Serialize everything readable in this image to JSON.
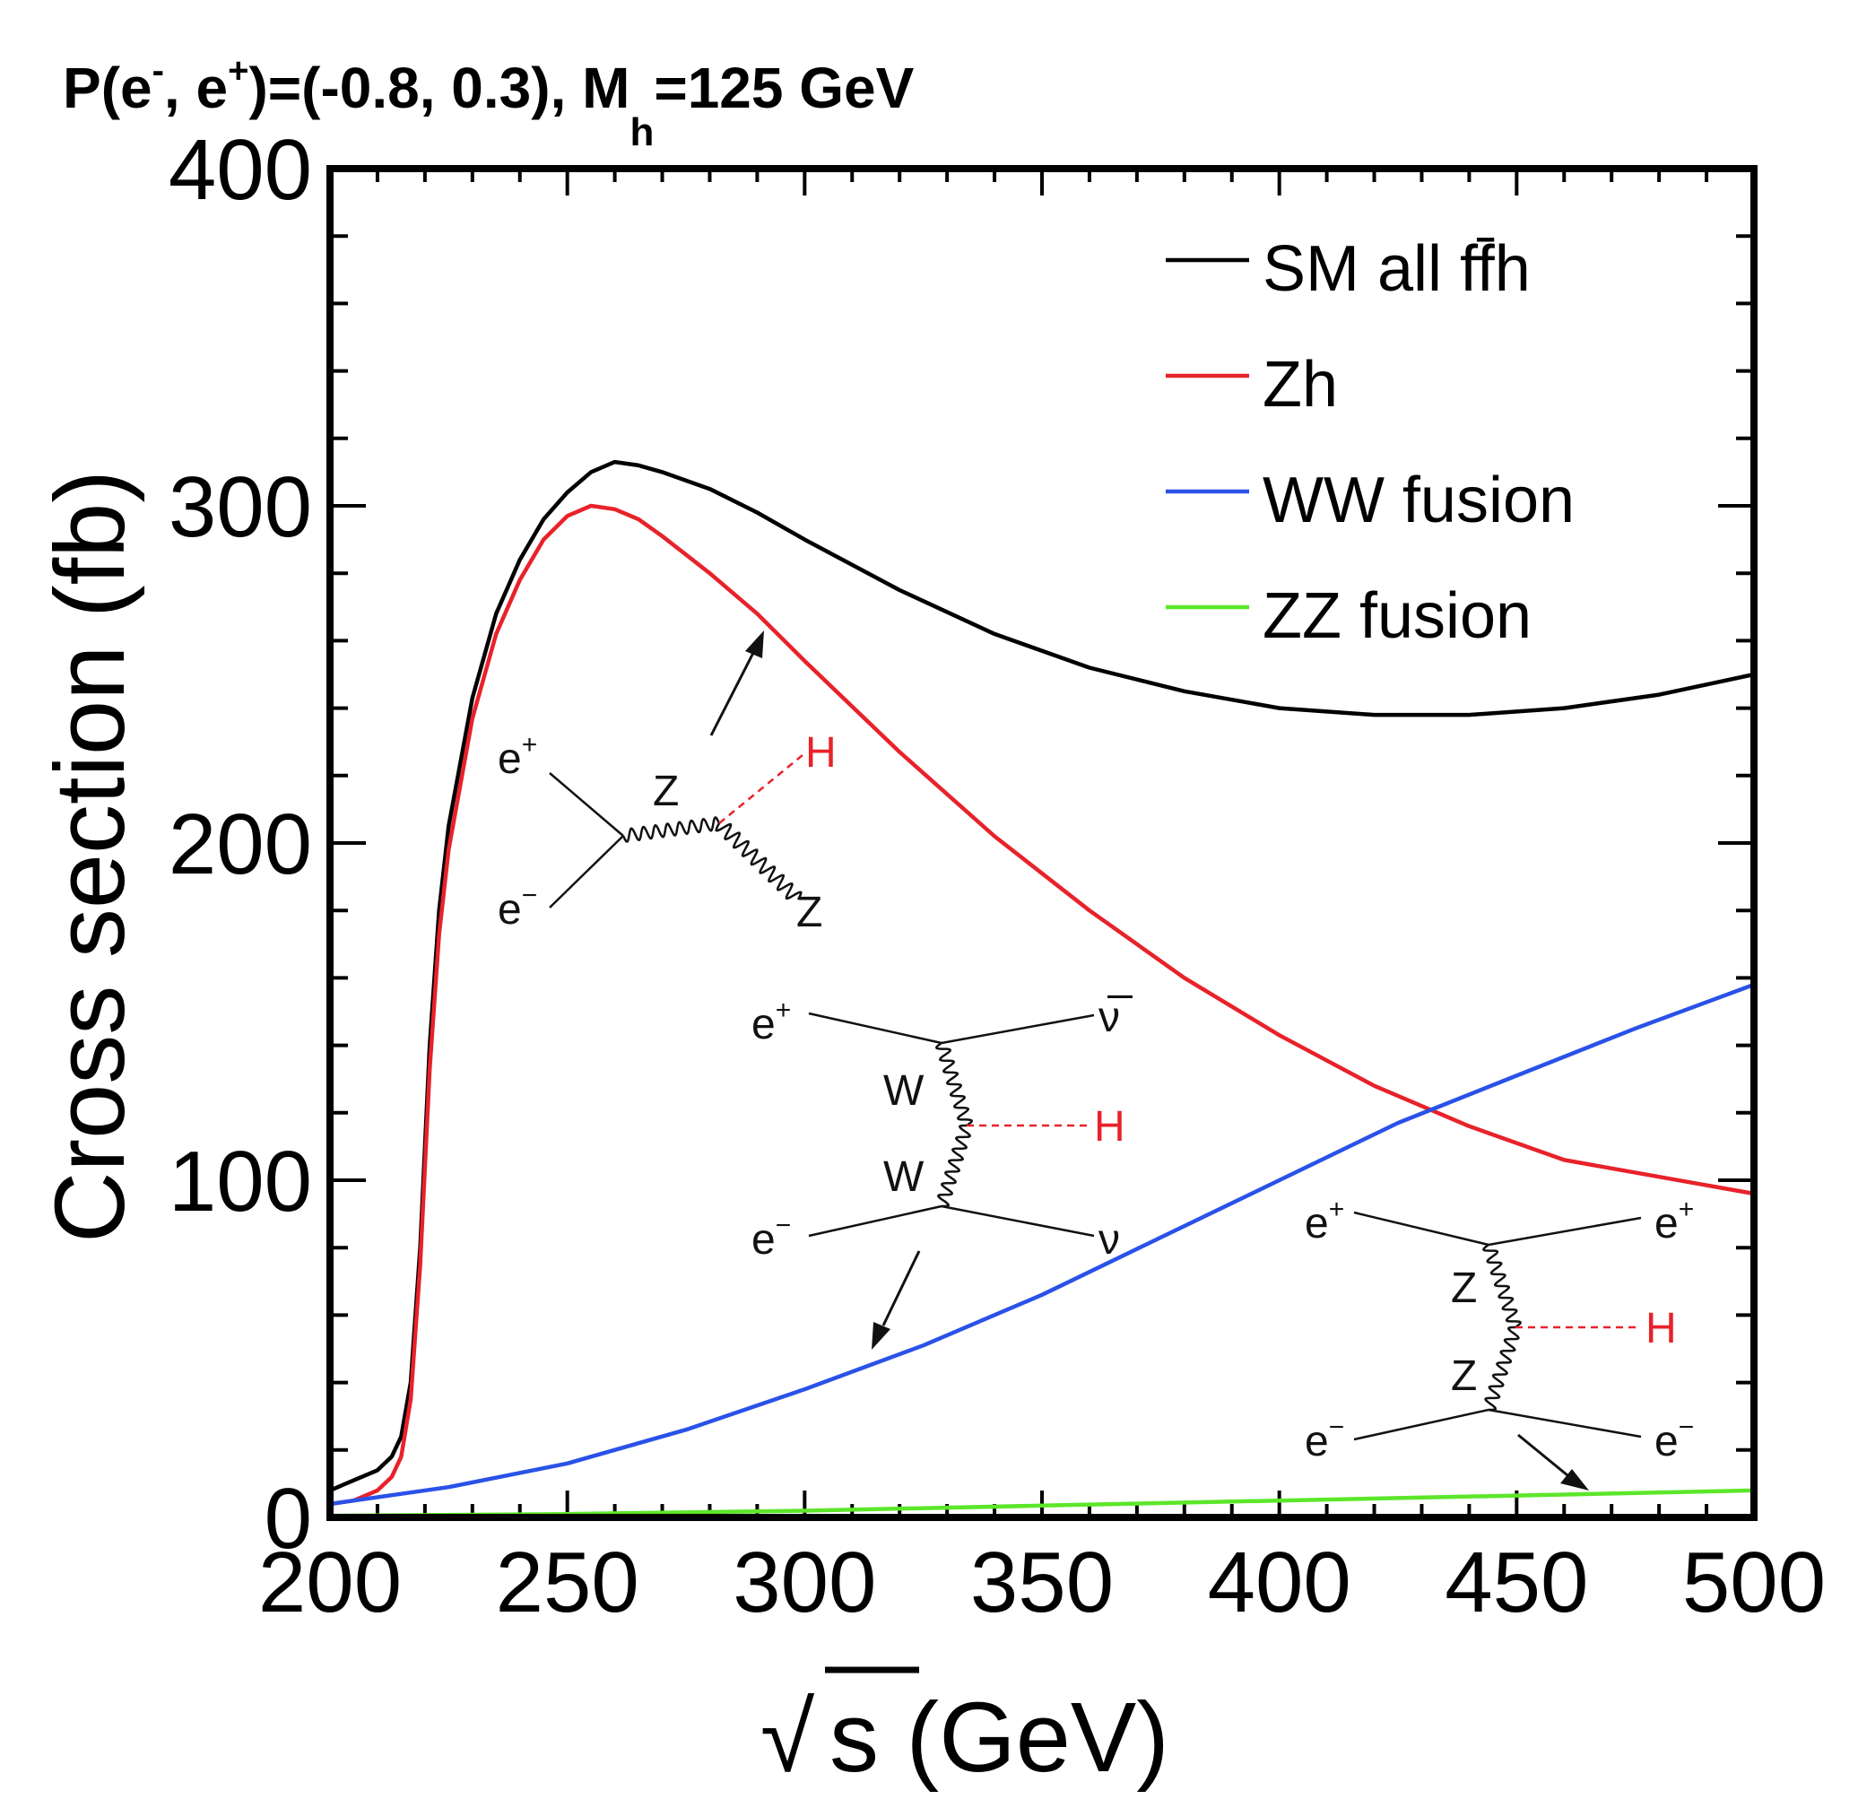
{
  "chart_data": {
    "type": "line",
    "title": {
      "text": "P(e",
      "sub1": "-",
      "text2": ", e",
      "sub2": "+",
      "text3": ")=(-0.8, 0.3), M",
      "sub3": "h",
      "text4": "=125 GeV"
    },
    "xlabel": {
      "root": "√",
      "text": "s (GeV)"
    },
    "ylabel": "Cross section (fb)",
    "xlim": [
      200,
      500
    ],
    "ylim": [
      0,
      400
    ],
    "xticks": [
      200,
      250,
      300,
      350,
      400,
      450,
      500
    ],
    "yticks": [
      0,
      100,
      200,
      300,
      400
    ],
    "grid": false,
    "legend_position": "top-right",
    "series": [
      {
        "name": "SM all ff̄h",
        "color": "#000000",
        "x": [
          200,
          205,
          210,
          213,
          215,
          217,
          219,
          221,
          223,
          225,
          230,
          235,
          240,
          245,
          250,
          255,
          260,
          265,
          270,
          280,
          290,
          300,
          320,
          340,
          360,
          380,
          400,
          420,
          440,
          460,
          480,
          500
        ],
        "y": [
          8,
          11,
          14,
          18,
          24,
          40,
          80,
          140,
          180,
          205,
          243,
          268,
          284,
          296,
          304,
          310,
          313,
          312,
          310,
          305,
          298,
          290,
          275,
          262,
          252,
          245,
          240,
          238,
          238,
          240,
          244,
          250
        ]
      },
      {
        "name": "Zh",
        "color": "#e8222a",
        "x": [
          200,
          205,
          210,
          213,
          215,
          217,
          219,
          221,
          223,
          225,
          230,
          235,
          240,
          245,
          250,
          255,
          260,
          265,
          270,
          280,
          290,
          300,
          320,
          340,
          360,
          380,
          400,
          420,
          440,
          460,
          480,
          500
        ],
        "y": [
          4,
          5,
          8,
          12,
          18,
          35,
          75,
          133,
          173,
          198,
          237,
          262,
          278,
          290,
          297,
          300,
          299,
          296,
          291,
          280,
          268,
          254,
          227,
          202,
          180,
          160,
          143,
          128,
          116,
          106,
          101,
          96
        ]
      },
      {
        "name": "WW fusion",
        "color": "#2a52e8",
        "x": [
          200,
          225,
          250,
          275,
          300,
          325,
          350,
          375,
          400,
          425,
          450,
          475,
          500
        ],
        "y": [
          4,
          9,
          16,
          26,
          38,
          51,
          66,
          83,
          100,
          117,
          131,
          145,
          158
        ]
      },
      {
        "name": "ZZ fusion",
        "color": "#5ce62a",
        "x": [
          200,
          250,
          300,
          350,
          400,
          450,
          500
        ],
        "y": [
          0.5,
          1.0,
          2.0,
          3.5,
          5.0,
          6.5,
          8.0
        ]
      }
    ],
    "diagrams": [
      {
        "name": "zh-diagram",
        "labels": {
          "ep": "e",
          "ep_sup": "+",
          "em": "e",
          "em_sup": "−",
          "z_prop": "Z",
          "h": "H",
          "z_out": "Z"
        }
      },
      {
        "name": "ww-fusion-diagram",
        "labels": {
          "ep": "e",
          "ep_sup": "+",
          "em": "e",
          "em_sup": "−",
          "w1": "W",
          "w2": "W",
          "h": "H",
          "nubar": "ν̅",
          "nu": "ν"
        }
      },
      {
        "name": "zz-fusion-diagram",
        "labels": {
          "ep_in": "e",
          "ep_in_sup": "+",
          "em_in": "e",
          "em_in_sup": "−",
          "z1": "Z",
          "z2": "Z",
          "h": "H",
          "ep_out": "e",
          "ep_out_sup": "+",
          "em_out": "e",
          "em_out_sup": "−"
        }
      }
    ]
  }
}
